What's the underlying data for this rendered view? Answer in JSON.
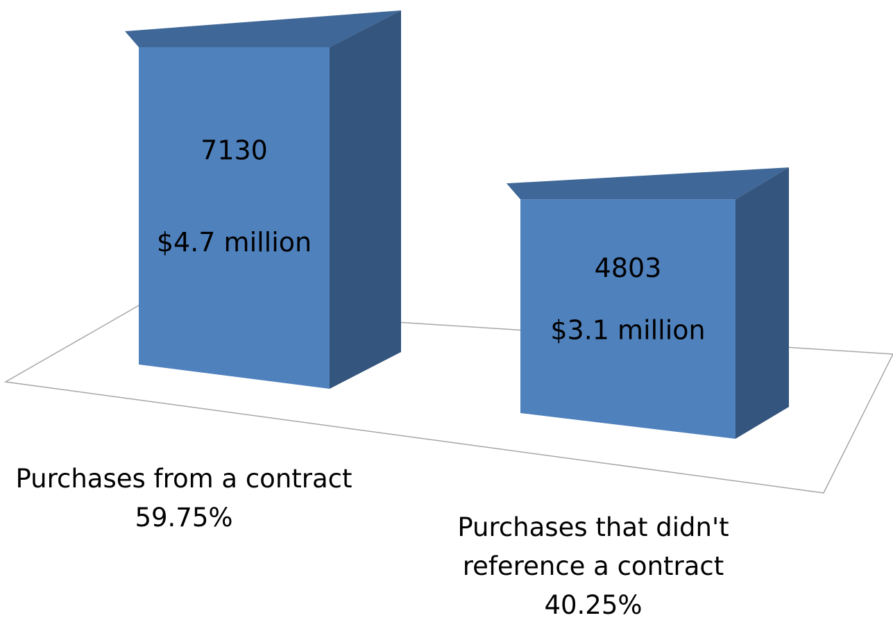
{
  "chart_data": {
    "type": "bar3d",
    "categories": [
      "Purchases from a contract",
      "Purchases that didn't reference a contract"
    ],
    "values": [
      7130,
      4803
    ],
    "amounts": [
      4700000,
      3100000
    ],
    "amount_labels": [
      "$4.7 million",
      "$3.1 million"
    ],
    "shares": [
      59.75,
      40.25
    ],
    "share_labels": [
      "59.75%",
      "40.25%"
    ],
    "color": "#4f81bd"
  }
}
